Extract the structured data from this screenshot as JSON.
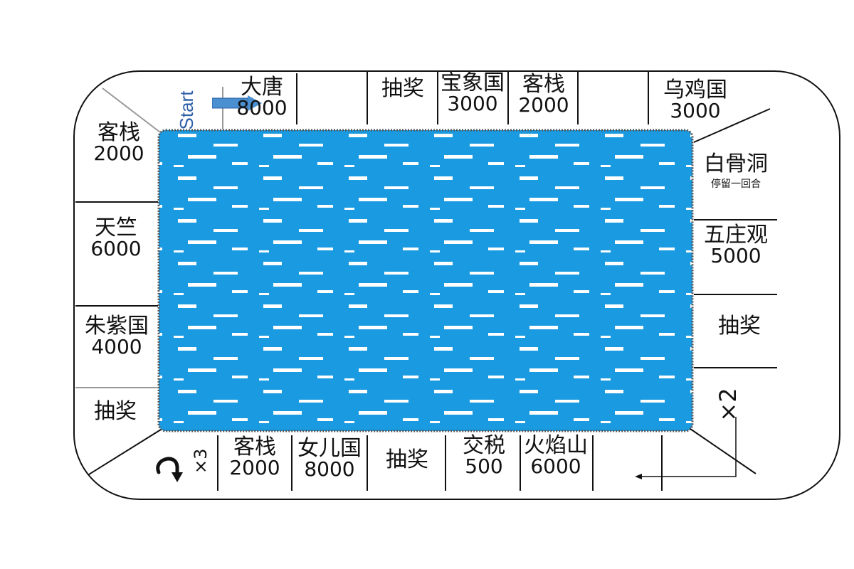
{
  "board": {
    "start_label": "Start",
    "top": [
      {
        "name": "大唐",
        "price": "8000"
      },
      {
        "name": "抽奖"
      },
      {
        "name": "宝象国",
        "price": "3000"
      },
      {
        "name": "客栈",
        "price": "2000"
      },
      {
        "name": "乌鸡国",
        "price": "3000"
      }
    ],
    "right": [
      {
        "name": "白骨洞",
        "note": "停留一回合"
      },
      {
        "name": "五庄观",
        "price": "5000"
      },
      {
        "name": "抽奖"
      },
      {
        "name": "×2"
      }
    ],
    "bottom": [
      {
        "name": "×3"
      },
      {
        "name": "客栈",
        "price": "2000"
      },
      {
        "name": "女儿国",
        "price": "8000"
      },
      {
        "name": "抽奖"
      },
      {
        "name": "交税",
        "price": "500"
      },
      {
        "name": "火焰山",
        "price": "6000"
      }
    ],
    "left": [
      {
        "name": "客栈",
        "price": "2000"
      },
      {
        "name": "天竺",
        "price": "6000"
      },
      {
        "name": "朱紫国",
        "price": "4000"
      },
      {
        "name": "抽奖"
      }
    ],
    "colors": {
      "center_fill": "#1a9ae0",
      "center_border": "#555555",
      "start_text": "#2e5fa8",
      "start_arrow": "#4a8fd0"
    },
    "icons": [
      "start-arrow-icon",
      "u-turn-icon",
      "return-arrow-icon"
    ]
  }
}
